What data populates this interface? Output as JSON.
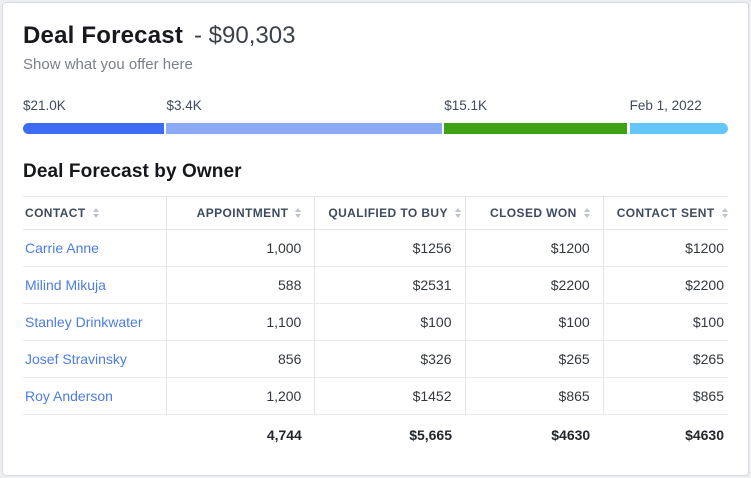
{
  "header": {
    "title": "Deal Forecast",
    "amount": "- $90,303",
    "subtitle": "Show what you offer here"
  },
  "forecast_bar": {
    "segments": [
      {
        "label": "$21.0K",
        "color": "#3d6cf4",
        "left_pct": 0,
        "width_pct": 20.0
      },
      {
        "label": "$3.4K",
        "color": "#8babf7",
        "left_pct": 20.35,
        "width_pct": 39.05
      },
      {
        "label": "$15.1K",
        "color": "#3da315",
        "left_pct": 59.75,
        "width_pct": 25.95
      },
      {
        "label": "Feb 1, 2022",
        "color": "#63c5f8",
        "left_pct": 86.05,
        "width_pct": 13.95
      }
    ]
  },
  "section_title": "Deal Forecast by Owner",
  "table": {
    "columns": [
      "CONTACT",
      "APPOINTMENT",
      "QUALIFIED TO BUY",
      "CLOSED WON",
      "CONTACT SENT"
    ],
    "rows": [
      {
        "contact": "Carrie Anne",
        "appointment": "1,000",
        "qualified_to_buy": "$1256",
        "closed_won": "$1200",
        "contact_sent": "$1200"
      },
      {
        "contact": "Milind Mikuja",
        "appointment": "588",
        "qualified_to_buy": "$2531",
        "closed_won": "$2200",
        "contact_sent": "$2200"
      },
      {
        "contact": "Stanley Drinkwater",
        "appointment": "1,100",
        "qualified_to_buy": "$100",
        "closed_won": "$100",
        "contact_sent": "$100"
      },
      {
        "contact": "Josef Stravinsky",
        "appointment": "856",
        "qualified_to_buy": "$326",
        "closed_won": "$265",
        "contact_sent": "$265"
      },
      {
        "contact": "Roy Anderson",
        "appointment": "1,200",
        "qualified_to_buy": "$1452",
        "closed_won": "$865",
        "contact_sent": "$865"
      }
    ],
    "totals": {
      "appointment": "4,744",
      "qualified_to_buy": "$5,665",
      "closed_won": "$4630",
      "contact_sent": "$4630"
    }
  }
}
